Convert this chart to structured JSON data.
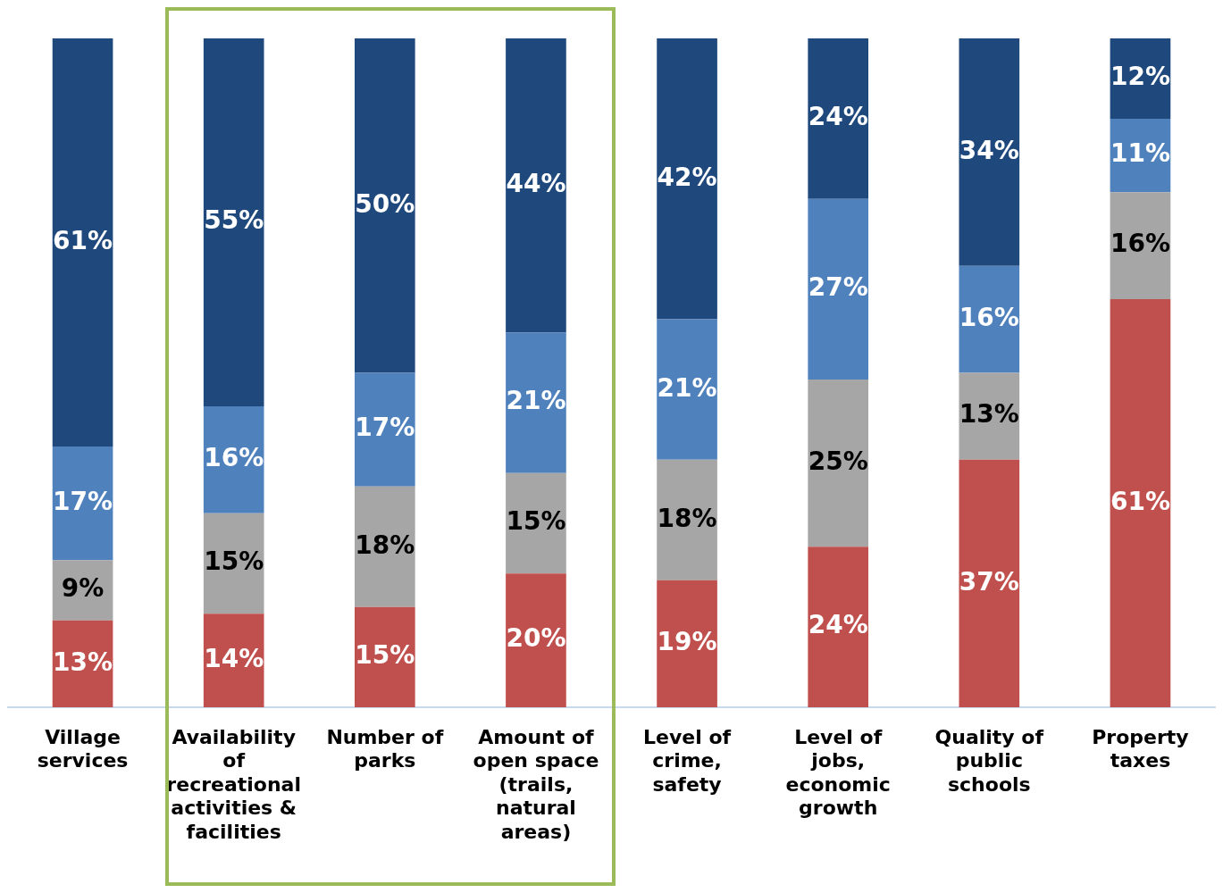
{
  "chart_data": {
    "type": "bar",
    "stacked": true,
    "categories": [
      "Village services",
      "Availability of recreational activities & facilities",
      "Number of parks",
      "Amount of open space (trails, natural areas)",
      "Level of crime, safety",
      "Level of jobs, economic growth",
      "Quality of public schools",
      "Property taxes"
    ],
    "series": [
      {
        "color": "#c0504d",
        "values": [
          13,
          14,
          15,
          20,
          19,
          24,
          37,
          61
        ],
        "value_labels": [
          "13%",
          "14%",
          "15%",
          "20%",
          "19%",
          "24%",
          "37%",
          "61%"
        ]
      },
      {
        "color": "#a6a6a6",
        "values": [
          9,
          15,
          18,
          15,
          18,
          25,
          13,
          16
        ],
        "value_labels": [
          "9%",
          "15%",
          "18%",
          "15%",
          "18%",
          "25%",
          "13%",
          "16%"
        ]
      },
      {
        "color": "#4f81bd",
        "values": [
          17,
          16,
          17,
          21,
          21,
          27,
          16,
          11
        ],
        "value_labels": [
          "17%",
          "16%",
          "17%",
          "21%",
          "21%",
          "27%",
          "16%",
          "11%"
        ]
      },
      {
        "color": "#1f497d",
        "values": [
          61,
          55,
          50,
          44,
          42,
          24,
          34,
          12
        ],
        "value_labels": [
          "61%",
          "55%",
          "50%",
          "44%",
          "42%",
          "24%",
          "34%",
          "12%"
        ]
      }
    ],
    "grid": false,
    "legend": false,
    "tick_labels": "x"
  }
}
